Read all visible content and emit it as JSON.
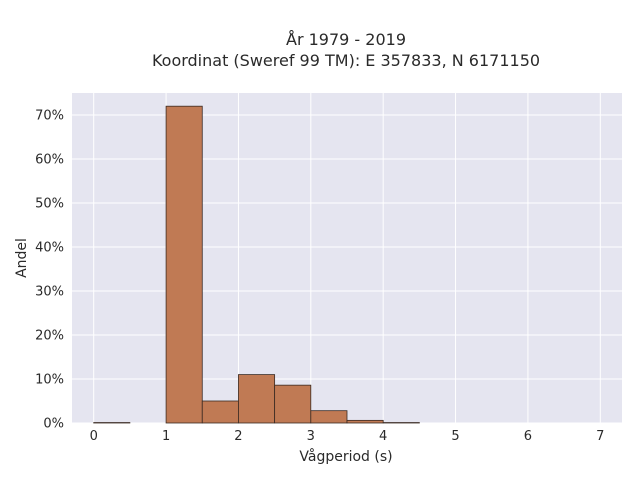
{
  "chart_data": {
    "type": "bar",
    "title_lines": [
      "År 1979 - 2019",
      "Koordinat (Sweref 99 TM): E 357833, N 6171150"
    ],
    "xlabel": "Vågperiod (s)",
    "ylabel": "Andel",
    "bin_width": 0.5,
    "bins": [
      {
        "start": 0.0,
        "value": 0.1
      },
      {
        "start": 0.5,
        "value": 0.0
      },
      {
        "start": 1.0,
        "value": 72.0
      },
      {
        "start": 1.5,
        "value": 5.0
      },
      {
        "start": 2.0,
        "value": 11.0
      },
      {
        "start": 2.5,
        "value": 8.6
      },
      {
        "start": 3.0,
        "value": 2.8
      },
      {
        "start": 3.5,
        "value": 0.6
      },
      {
        "start": 4.0,
        "value": 0.1
      }
    ],
    "xlim": [
      -0.3,
      7.3
    ],
    "ylim": [
      0,
      75
    ],
    "x_ticks": [
      0,
      1,
      2,
      3,
      4,
      5,
      6,
      7
    ],
    "y_ticks": [
      0,
      10,
      20,
      30,
      40,
      50,
      60,
      70
    ],
    "y_tick_suffix": "%",
    "grid": true,
    "colors": {
      "plot_background": "#e5e5f0",
      "grid": "#ffffff",
      "bar_fill": "#c07a54",
      "bar_stroke": "#3a2a22"
    }
  }
}
